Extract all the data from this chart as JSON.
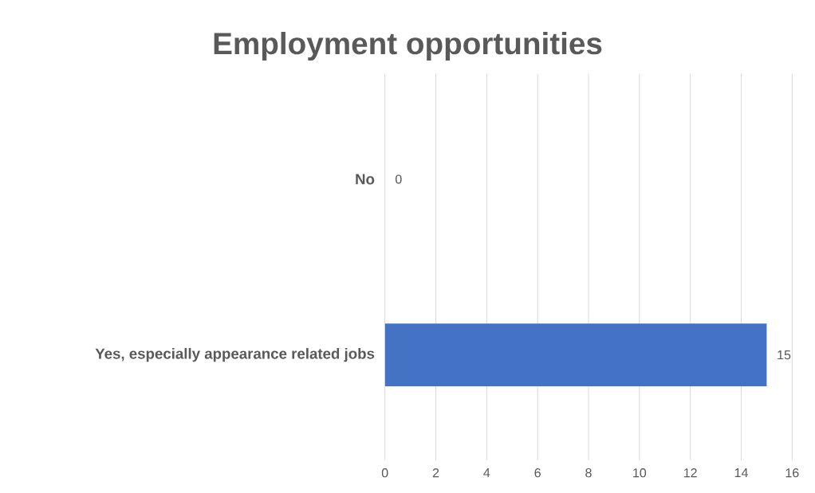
{
  "chart_data": {
    "type": "bar",
    "orientation": "horizontal",
    "title": "Employment opportunities",
    "categories": [
      "No",
      "Yes, especially appearance related jobs"
    ],
    "values": [
      0,
      15
    ],
    "color": "#4472c4",
    "data_labels": true,
    "xlim": [
      0,
      16
    ],
    "xticks": [
      0,
      2,
      4,
      6,
      8,
      10,
      12,
      14,
      16
    ],
    "grid": "x"
  }
}
